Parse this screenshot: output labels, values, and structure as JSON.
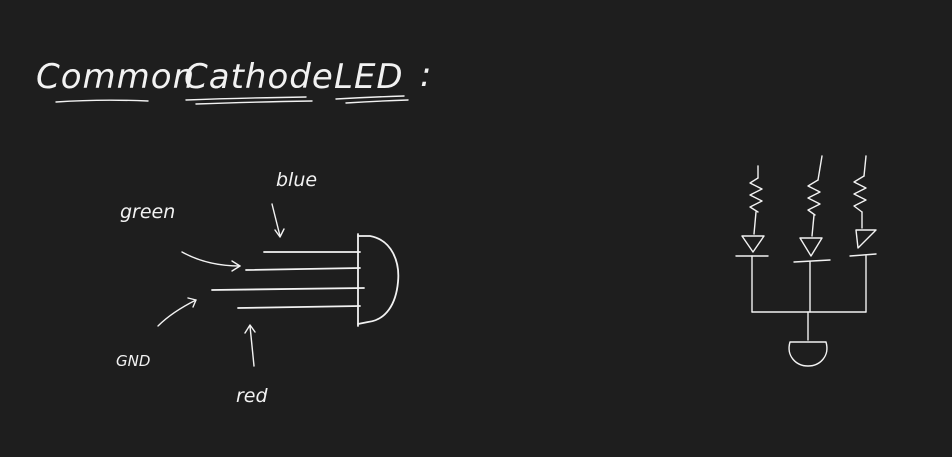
{
  "title": {
    "word1": "Common",
    "word2": "Cathode",
    "word3": "LED",
    "punct": ":"
  },
  "labels": {
    "green": "green",
    "blue": "blue",
    "gnd": "GND",
    "red": "red"
  },
  "colors": {
    "background": "#1e1e1e",
    "ink": "#f2f2f2"
  }
}
